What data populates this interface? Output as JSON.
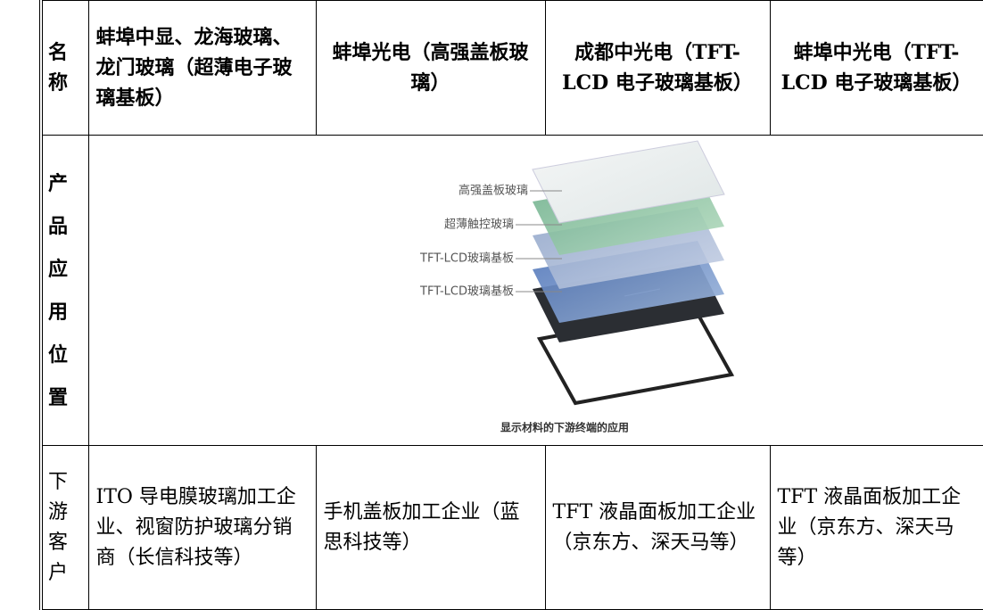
{
  "table": {
    "header": [
      "名称",
      "蚌埠中显、龙海玻璃、龙门玻璃（超薄电子玻璃基板）",
      "蚌埠光电（高强盖板玻璃）",
      "成都中光电（TFT-LCD 电子玻璃基板）",
      "蚌埠中光电（TFT-LCD 电子玻璃基板）"
    ],
    "rows": [
      [
        "产品应用位置"
      ],
      [
        "下游客户",
        "ITO 导电膜玻璃加工企业、视窗防护玻璃分销商（长信科技等）",
        "手机盖板加工企业（蓝思科技等）",
        "TFT 液晶面板加工企业（京东方、深天马等）",
        "TFT 液晶面板加工企业（京东方、深天马等）"
      ]
    ]
  },
  "figure": {
    "labels": [
      "高强盖板玻璃",
      "超薄触控玻璃",
      "TFT-LCD玻璃基板",
      "TFT-LCD玻璃基板"
    ],
    "caption": "显示材料的下游终端的应用"
  }
}
